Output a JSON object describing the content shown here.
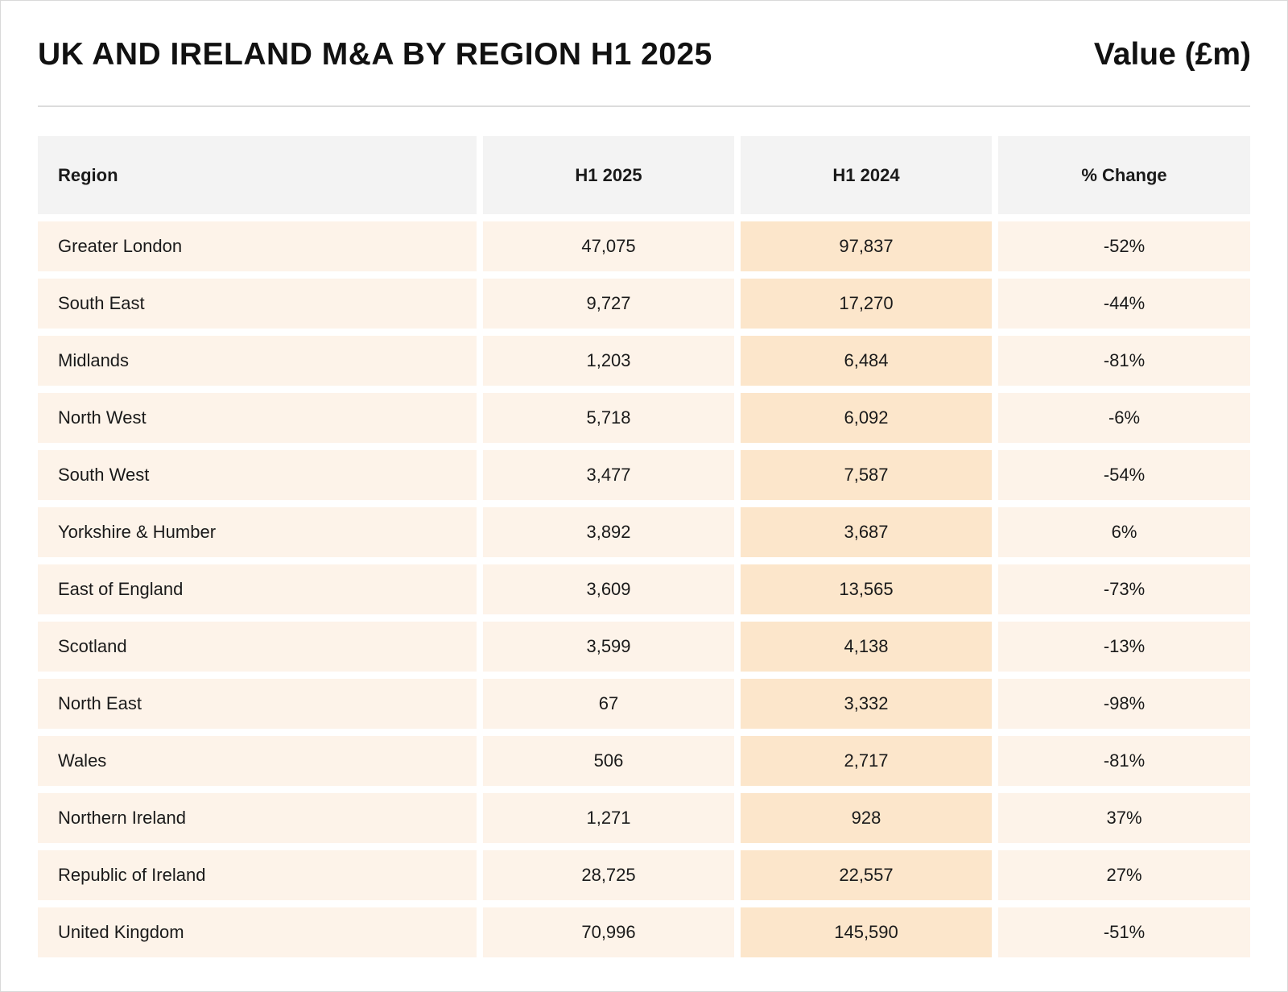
{
  "title": "UK AND IRELAND M&A BY REGION H1 2025",
  "unit_label": "Value (£m)",
  "colors": {
    "header_bg": "#f3f3f3",
    "row_bg": "#fdf3e9",
    "highlight_col_bg": "#fce6cb",
    "rule": "#dcdcdc"
  },
  "chart_data": {
    "type": "table",
    "title": "UK AND IRELAND M&A BY REGION H1 2025",
    "unit": "Value (£m)",
    "columns": [
      "Region",
      "H1 2025",
      "H1 2024",
      "% Change"
    ],
    "rows": [
      {
        "region": "Greater London",
        "h1_2025": "47,075",
        "h1_2024": "97,837",
        "change": "-52%"
      },
      {
        "region": "South East",
        "h1_2025": "9,727",
        "h1_2024": "17,270",
        "change": "-44%"
      },
      {
        "region": "Midlands",
        "h1_2025": "1,203",
        "h1_2024": "6,484",
        "change": "-81%"
      },
      {
        "region": "North West",
        "h1_2025": "5,718",
        "h1_2024": "6,092",
        "change": "-6%"
      },
      {
        "region": "South West",
        "h1_2025": "3,477",
        "h1_2024": "7,587",
        "change": "-54%"
      },
      {
        "region": "Yorkshire & Humber",
        "h1_2025": "3,892",
        "h1_2024": "3,687",
        "change": "6%"
      },
      {
        "region": "East of England",
        "h1_2025": "3,609",
        "h1_2024": "13,565",
        "change": "-73%"
      },
      {
        "region": "Scotland",
        "h1_2025": "3,599",
        "h1_2024": "4,138",
        "change": "-13%"
      },
      {
        "region": "North East",
        "h1_2025": "67",
        "h1_2024": "3,332",
        "change": "-98%"
      },
      {
        "region": "Wales",
        "h1_2025": "506",
        "h1_2024": "2,717",
        "change": "-81%"
      },
      {
        "region": "Northern Ireland",
        "h1_2025": "1,271",
        "h1_2024": "928",
        "change": "37%"
      },
      {
        "region": "Republic of Ireland",
        "h1_2025": "28,725",
        "h1_2024": "22,557",
        "change": "27%"
      },
      {
        "region": "United Kingdom",
        "h1_2025": "70,996",
        "h1_2024": "145,590",
        "change": "-51%"
      }
    ]
  }
}
